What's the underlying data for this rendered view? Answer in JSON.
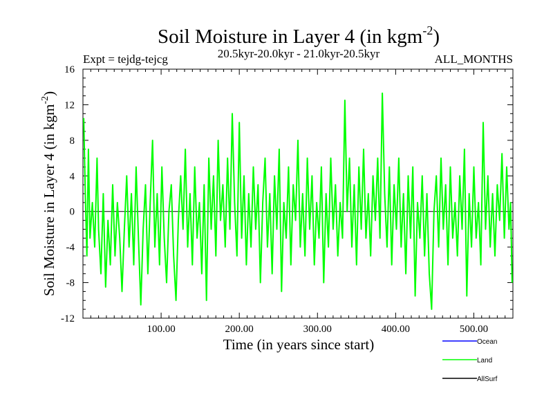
{
  "chart_data": {
    "type": "line",
    "title_main": "Soil Moisture in Layer 4 (in kgm",
    "title_sup": "-2",
    "title_close": ")",
    "subtitle_left": "Expt = tejdg-tejcg",
    "subtitle_center": "20.5kyr-20.0kyr - 21.0kyr-20.5kyr",
    "subtitle_right": "ALL_MONTHS",
    "xlabel": "Time (in years since start)",
    "ylabel_main": "Soil Moisture in Layer 4 (in kgm",
    "ylabel_sup": "-2",
    "ylabel_close": ")",
    "xlim": [
      0,
      550
    ],
    "ylim": [
      -12,
      16
    ],
    "x_ticks": [
      100,
      200,
      300,
      400,
      500
    ],
    "x_tick_labels": [
      "100.00",
      "200.00",
      "300.00",
      "400.00",
      "500.00"
    ],
    "y_ticks": [
      -12,
      -8,
      -4,
      0,
      4,
      8,
      12,
      16
    ],
    "y_tick_labels": [
      "-12",
      "-8",
      "-4",
      "0",
      "4",
      "8",
      "12",
      "16"
    ],
    "zero_line": true,
    "legend_position": "bottom-right",
    "series": [
      {
        "name": "Ocean",
        "color": "#0000ff",
        "values": []
      },
      {
        "name": "Land",
        "color": "#00ff00",
        "values": [
          {
            "x": 1,
            "y": 10.5
          },
          {
            "x": 3,
            "y": 2
          },
          {
            "x": 5,
            "y": -5
          },
          {
            "x": 7,
            "y": 7
          },
          {
            "x": 9,
            "y": -3
          },
          {
            "x": 12,
            "y": 1
          },
          {
            "x": 15,
            "y": -4
          },
          {
            "x": 18,
            "y": 6
          },
          {
            "x": 20,
            "y": -2
          },
          {
            "x": 23,
            "y": -7
          },
          {
            "x": 26,
            "y": 2
          },
          {
            "x": 29,
            "y": -8.5
          },
          {
            "x": 32,
            "y": -1
          },
          {
            "x": 35,
            "y": -6
          },
          {
            "x": 38,
            "y": 3
          },
          {
            "x": 41,
            "y": -5
          },
          {
            "x": 44,
            "y": 1
          },
          {
            "x": 47,
            "y": -3
          },
          {
            "x": 50,
            "y": -9
          },
          {
            "x": 53,
            "y": -2
          },
          {
            "x": 56,
            "y": 4
          },
          {
            "x": 59,
            "y": -4
          },
          {
            "x": 62,
            "y": 2
          },
          {
            "x": 65,
            "y": -6
          },
          {
            "x": 68,
            "y": 5
          },
          {
            "x": 71,
            "y": -3
          },
          {
            "x": 74,
            "y": -10.5
          },
          {
            "x": 77,
            "y": -2
          },
          {
            "x": 80,
            "y": 3
          },
          {
            "x": 83,
            "y": -7
          },
          {
            "x": 86,
            "y": 1
          },
          {
            "x": 89,
            "y": 8
          },
          {
            "x": 92,
            "y": -4
          },
          {
            "x": 95,
            "y": 2
          },
          {
            "x": 98,
            "y": -6
          },
          {
            "x": 101,
            "y": 5
          },
          {
            "x": 104,
            "y": -3
          },
          {
            "x": 107,
            "y": -8
          },
          {
            "x": 110,
            "y": 0
          },
          {
            "x": 113,
            "y": 3
          },
          {
            "x": 116,
            "y": -5
          },
          {
            "x": 119,
            "y": -10
          },
          {
            "x": 122,
            "y": -1
          },
          {
            "x": 125,
            "y": 4
          },
          {
            "x": 128,
            "y": -2
          },
          {
            "x": 131,
            "y": 7
          },
          {
            "x": 134,
            "y": -4
          },
          {
            "x": 137,
            "y": 2
          },
          {
            "x": 140,
            "y": -6
          },
          {
            "x": 143,
            "y": 5
          },
          {
            "x": 146,
            "y": -3
          },
          {
            "x": 149,
            "y": 1
          },
          {
            "x": 152,
            "y": -7
          },
          {
            "x": 155,
            "y": 3
          },
          {
            "x": 158,
            "y": -10
          },
          {
            "x": 161,
            "y": 6
          },
          {
            "x": 164,
            "y": -2
          },
          {
            "x": 167,
            "y": 4
          },
          {
            "x": 170,
            "y": -5
          },
          {
            "x": 173,
            "y": 8
          },
          {
            "x": 176,
            "y": -1
          },
          {
            "x": 179,
            "y": 3
          },
          {
            "x": 182,
            "y": -4
          },
          {
            "x": 185,
            "y": 6
          },
          {
            "x": 188,
            "y": -2
          },
          {
            "x": 191,
            "y": 11
          },
          {
            "x": 194,
            "y": 1
          },
          {
            "x": 197,
            "y": -5
          },
          {
            "x": 200,
            "y": 10
          },
          {
            "x": 203,
            "y": -3
          },
          {
            "x": 206,
            "y": 4
          },
          {
            "x": 209,
            "y": -6
          },
          {
            "x": 212,
            "y": 2
          },
          {
            "x": 215,
            "y": -4
          },
          {
            "x": 218,
            "y": 5
          },
          {
            "x": 221,
            "y": -2
          },
          {
            "x": 224,
            "y": 3
          },
          {
            "x": 227,
            "y": -8
          },
          {
            "x": 230,
            "y": 1
          },
          {
            "x": 233,
            "y": 6
          },
          {
            "x": 236,
            "y": -4
          },
          {
            "x": 239,
            "y": 2
          },
          {
            "x": 242,
            "y": -7
          },
          {
            "x": 245,
            "y": 4
          },
          {
            "x": 248,
            "y": -2
          },
          {
            "x": 251,
            "y": 7
          },
          {
            "x": 254,
            "y": -9
          },
          {
            "x": 257,
            "y": 1
          },
          {
            "x": 260,
            "y": -3
          },
          {
            "x": 263,
            "y": 5
          },
          {
            "x": 266,
            "y": -6
          },
          {
            "x": 269,
            "y": 3
          },
          {
            "x": 272,
            "y": -1
          },
          {
            "x": 275,
            "y": 8
          },
          {
            "x": 278,
            "y": -4
          },
          {
            "x": 281,
            "y": 2
          },
          {
            "x": 284,
            "y": -5
          },
          {
            "x": 287,
            "y": 6
          },
          {
            "x": 290,
            "y": -2
          },
          {
            "x": 293,
            "y": 4
          },
          {
            "x": 296,
            "y": -6
          },
          {
            "x": 299,
            "y": 1
          },
          {
            "x": 302,
            "y": -3
          },
          {
            "x": 305,
            "y": 5
          },
          {
            "x": 308,
            "y": -8
          },
          {
            "x": 311,
            "y": 2
          },
          {
            "x": 314,
            "y": -4
          },
          {
            "x": 317,
            "y": 6
          },
          {
            "x": 320,
            "y": -2
          },
          {
            "x": 323,
            "y": 3
          },
          {
            "x": 326,
            "y": -5
          },
          {
            "x": 329,
            "y": 1
          },
          {
            "x": 332,
            "y": -3
          },
          {
            "x": 335,
            "y": 12.5
          },
          {
            "x": 338,
            "y": 0
          },
          {
            "x": 341,
            "y": 6
          },
          {
            "x": 344,
            "y": -4
          },
          {
            "x": 347,
            "y": 3
          },
          {
            "x": 350,
            "y": -6
          },
          {
            "x": 353,
            "y": 5
          },
          {
            "x": 356,
            "y": -2
          },
          {
            "x": 359,
            "y": 7
          },
          {
            "x": 362,
            "y": -3
          },
          {
            "x": 365,
            "y": 2
          },
          {
            "x": 368,
            "y": -5
          },
          {
            "x": 371,
            "y": 4
          },
          {
            "x": 374,
            "y": -1
          },
          {
            "x": 377,
            "y": 6
          },
          {
            "x": 380,
            "y": -3
          },
          {
            "x": 383,
            "y": 13.3
          },
          {
            "x": 386,
            "y": 2
          },
          {
            "x": 389,
            "y": -4
          },
          {
            "x": 392,
            "y": 5
          },
          {
            "x": 395,
            "y": -6
          },
          {
            "x": 398,
            "y": 3
          },
          {
            "x": 401,
            "y": -2
          },
          {
            "x": 404,
            "y": 6
          },
          {
            "x": 407,
            "y": -4
          },
          {
            "x": 410,
            "y": 2
          },
          {
            "x": 413,
            "y": -7
          },
          {
            "x": 416,
            "y": 4
          },
          {
            "x": 419,
            "y": -3
          },
          {
            "x": 422,
            "y": 5
          },
          {
            "x": 425,
            "y": -9.5
          },
          {
            "x": 428,
            "y": 1
          },
          {
            "x": 431,
            "y": -3
          },
          {
            "x": 434,
            "y": 4
          },
          {
            "x": 437,
            "y": -5
          },
          {
            "x": 440,
            "y": 2
          },
          {
            "x": 443,
            "y": -7
          },
          {
            "x": 446,
            "y": -11
          },
          {
            "x": 449,
            "y": 0
          },
          {
            "x": 452,
            "y": 4
          },
          {
            "x": 455,
            "y": -4
          },
          {
            "x": 458,
            "y": 6
          },
          {
            "x": 461,
            "y": -2
          },
          {
            "x": 464,
            "y": 3
          },
          {
            "x": 467,
            "y": -6
          },
          {
            "x": 470,
            "y": 5
          },
          {
            "x": 473,
            "y": -3
          },
          {
            "x": 476,
            "y": 1
          },
          {
            "x": 479,
            "y": -5
          },
          {
            "x": 482,
            "y": 4
          },
          {
            "x": 485,
            "y": -2
          },
          {
            "x": 488,
            "y": 7
          },
          {
            "x": 491,
            "y": -9.5
          },
          {
            "x": 494,
            "y": 2
          },
          {
            "x": 497,
            "y": -4
          },
          {
            "x": 500,
            "y": 5
          },
          {
            "x": 503,
            "y": -3
          },
          {
            "x": 506,
            "y": 1
          },
          {
            "x": 509,
            "y": -6
          },
          {
            "x": 512,
            "y": 10
          },
          {
            "x": 515,
            "y": -2
          },
          {
            "x": 518,
            "y": 4
          },
          {
            "x": 521,
            "y": -4
          },
          {
            "x": 524,
            "y": 2
          },
          {
            "x": 527,
            "y": -5
          },
          {
            "x": 530,
            "y": 3
          },
          {
            "x": 533,
            "y": -1
          },
          {
            "x": 536,
            "y": 6.5
          },
          {
            "x": 539,
            "y": -3
          },
          {
            "x": 542,
            "y": 5
          },
          {
            "x": 545,
            "y": -2
          },
          {
            "x": 547,
            "y": 1
          },
          {
            "x": 549,
            "y": -8
          }
        ]
      },
      {
        "name": "AllSurf",
        "color": "#000000",
        "values": []
      }
    ]
  }
}
